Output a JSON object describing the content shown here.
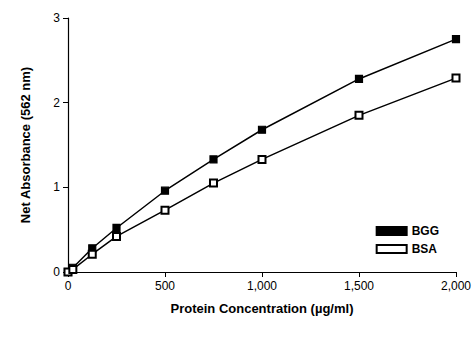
{
  "chart_data": {
    "type": "line",
    "x_label": "Protein Concentration (µg/ml)",
    "y_label": "Net Absorbance (562 nm)",
    "x": [
      0,
      25,
      125,
      250,
      500,
      750,
      1000,
      1500,
      2000
    ],
    "series": [
      {
        "name": "BGG",
        "color": "#000000",
        "marker": "square",
        "values": [
          0,
          0.05,
          0.28,
          0.52,
          0.96,
          1.33,
          1.68,
          2.28,
          2.75
        ]
      },
      {
        "name": "BSA",
        "color": "#000000",
        "marker": "open_square",
        "values": [
          0,
          0.03,
          0.21,
          0.42,
          0.73,
          1.05,
          1.33,
          1.85,
          2.29
        ]
      }
    ],
    "xlim": [
      0,
      2000
    ],
    "xticks": [
      0,
      500,
      {
        "value": 1000,
        "label": "1,000"
      },
      {
        "value": 1500,
        "label": "1,500"
      },
      {
        "value": 2000,
        "label": "2,000"
      }
    ],
    "ylim": [
      0,
      3
    ],
    "yticks": [
      0,
      1,
      2,
      3
    ],
    "grid": false,
    "legend": "bottom-right"
  }
}
